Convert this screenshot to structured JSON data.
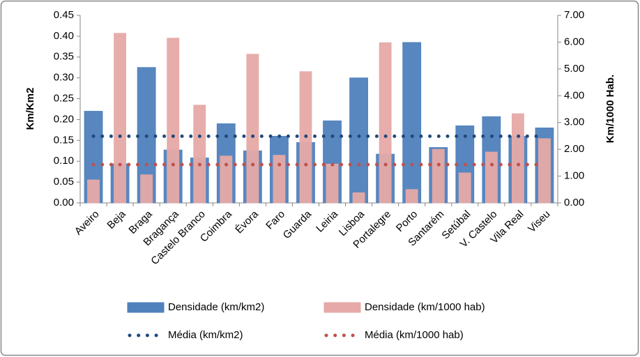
{
  "chart_data": {
    "type": "bar",
    "y_label": "Km/Km2",
    "y2_label": "Km/1000 Hab.",
    "categories": [
      "Aveiro",
      "Beja",
      "Braga",
      "Bragança",
      "Castelo Branco",
      "Coimbra",
      "Évora",
      "Faro",
      "Guarda",
      "Leiria",
      "Lisboa",
      "Portalegre",
      "Porto",
      "Santarém",
      "Setúbal",
      "V. Castelo",
      "Vila Real",
      "Viseu"
    ],
    "series": [
      {
        "name": "Densidade (km/km2)",
        "type": "bar",
        "axis": "y",
        "color": "#4f81bd",
        "values": [
          0.22,
          0.094,
          0.325,
          0.127,
          0.108,
          0.19,
          0.125,
          0.16,
          0.145,
          0.197,
          0.3,
          0.117,
          0.385,
          0.133,
          0.185,
          0.207,
          0.16,
          0.18
        ]
      },
      {
        "name": "Densidade (km/1000 hab)",
        "type": "bar",
        "axis": "y2",
        "color": "#e6a9a7",
        "values": [
          0.86,
          6.33,
          1.05,
          6.15,
          3.65,
          1.75,
          5.55,
          1.78,
          4.9,
          1.45,
          0.38,
          5.98,
          0.5,
          2.0,
          1.12,
          1.9,
          3.33,
          2.4
        ]
      },
      {
        "name": "Média (km/km2)",
        "type": "line",
        "axis": "y",
        "color": "#1f497d",
        "values": [
          0.16,
          0.16,
          0.16,
          0.16,
          0.16,
          0.16,
          0.16,
          0.16,
          0.16,
          0.16,
          0.16,
          0.16,
          0.16,
          0.16,
          0.16,
          0.16,
          0.16,
          0.16
        ]
      },
      {
        "name": "Média (km/1000 hab)",
        "type": "line",
        "axis": "y2",
        "color": "#c0504d",
        "values": [
          1.43,
          1.43,
          1.43,
          1.43,
          1.43,
          1.43,
          1.43,
          1.43,
          1.43,
          1.43,
          1.43,
          1.43,
          1.43,
          1.43,
          1.43,
          1.43,
          1.43,
          1.43
        ]
      }
    ],
    "ylim": [
      0,
      0.45
    ],
    "yticks": [
      {
        "value": 0,
        "label": "0.00"
      },
      {
        "value": 0.05,
        "label": "0.05"
      },
      {
        "value": 0.1,
        "label": "0.10"
      },
      {
        "value": 0.15,
        "label": "0.15"
      },
      {
        "value": 0.2,
        "label": "0.20"
      },
      {
        "value": 0.25,
        "label": "0.25"
      },
      {
        "value": 0.3,
        "label": "0.30"
      },
      {
        "value": 0.35,
        "label": "0.35"
      },
      {
        "value": 0.4,
        "label": "0.40"
      },
      {
        "value": 0.45,
        "label": "0.45"
      }
    ],
    "y2lim": [
      0,
      7
    ],
    "y2ticks": [
      {
        "value": 0,
        "label": "0.00"
      },
      {
        "value": 1,
        "label": "1.00"
      },
      {
        "value": 2,
        "label": "2.00"
      },
      {
        "value": 3,
        "label": "3.00"
      },
      {
        "value": 4,
        "label": "4.00"
      },
      {
        "value": 5,
        "label": "5.00"
      },
      {
        "value": 6,
        "label": "6.00"
      },
      {
        "value": 7,
        "label": "7.00"
      }
    ],
    "grid": false,
    "legend": "bottom"
  }
}
